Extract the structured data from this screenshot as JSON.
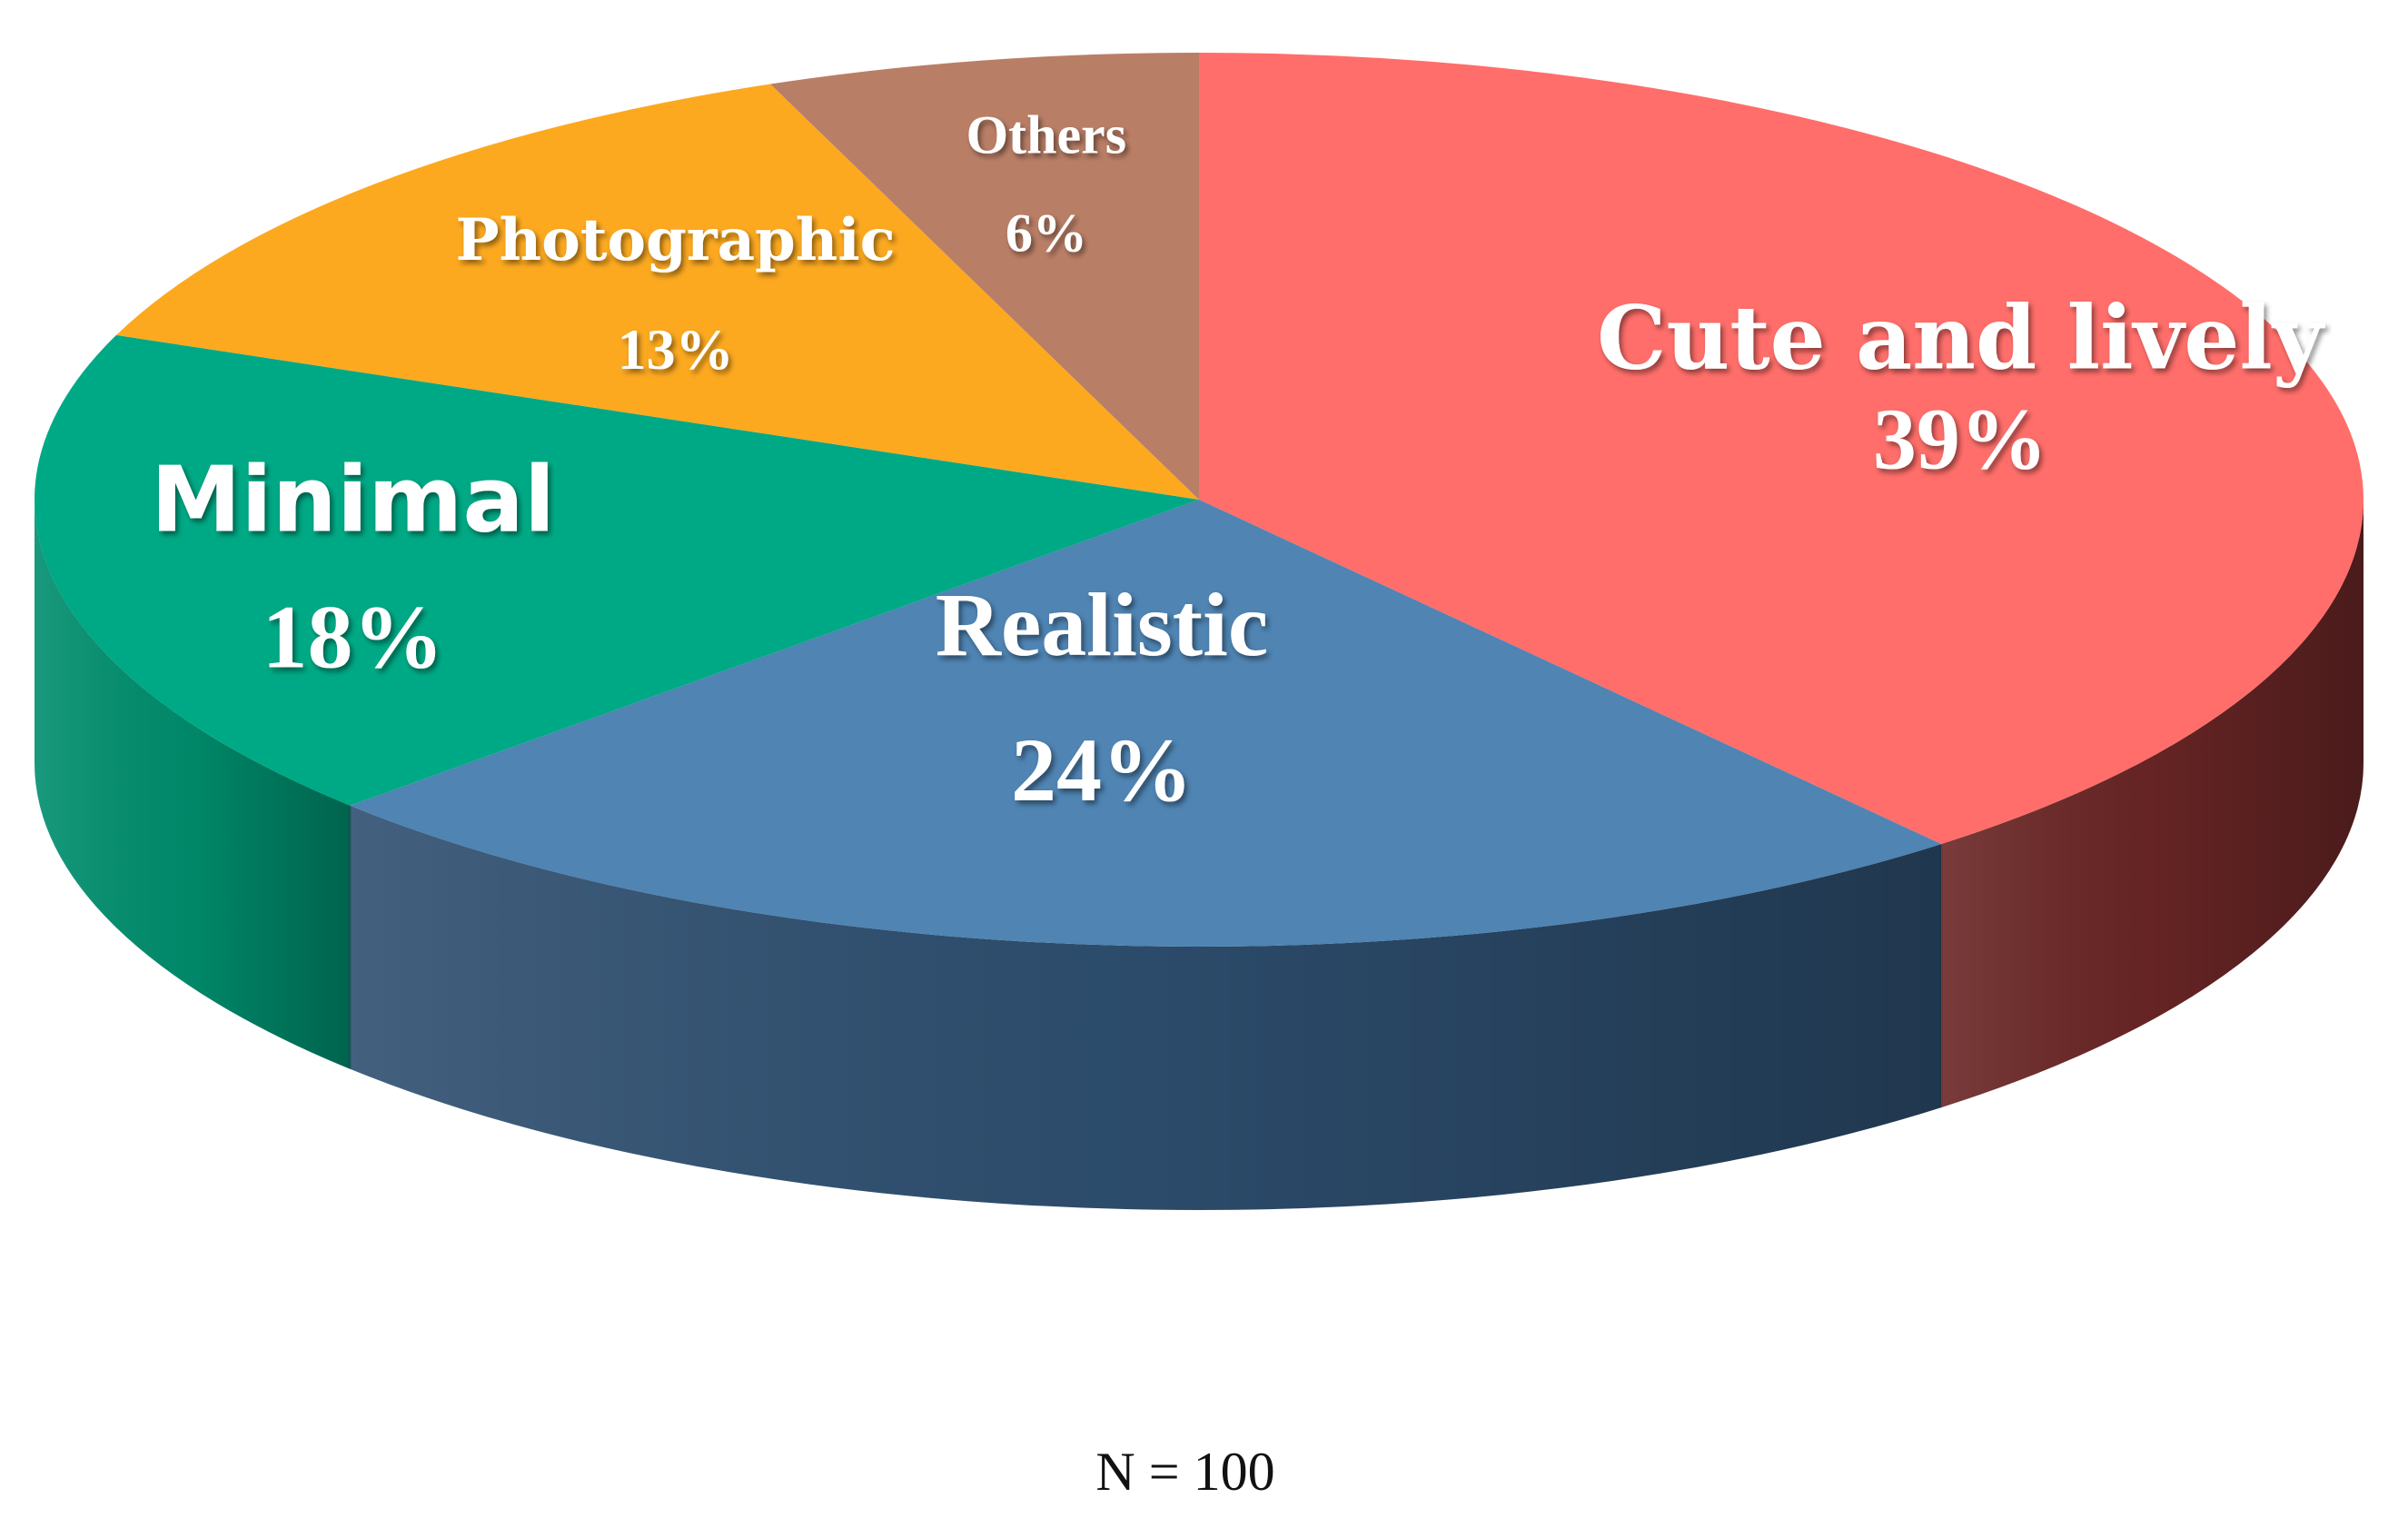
{
  "chart_data": {
    "type": "pie",
    "style": "3d",
    "slices": [
      {
        "name": "Cute and lively",
        "value": 39,
        "label": "39%",
        "color": "#FF6E6A",
        "side_color": "#6B2626"
      },
      {
        "name": "Realistic",
        "value": 24,
        "label": "24%",
        "color": "#4F84B3",
        "side_color": "#2E4F70"
      },
      {
        "name": "Minimal",
        "value": 18,
        "label": "18%",
        "color": "#00A985",
        "side_color": "#008E6E"
      },
      {
        "name": "Photographic",
        "value": 13,
        "label": "13%",
        "color": "#FCA920",
        "side_color": "#C98210"
      },
      {
        "name": "Others",
        "value": 6,
        "label": "6%",
        "color": "#B97E66",
        "side_color": "#8A5A48"
      }
    ],
    "note": "N = 100",
    "legend": "none"
  }
}
